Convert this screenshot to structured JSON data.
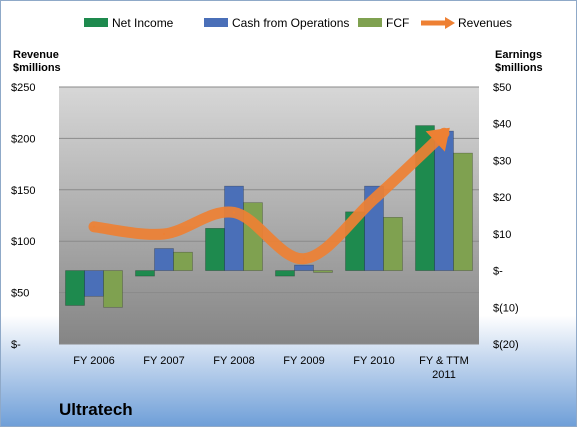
{
  "company_name": "Ultratech",
  "chart_data": {
    "type": "bar",
    "categories": [
      "FY 2006",
      "FY 2007",
      "FY 2008",
      "FY 2009",
      "FY 2010",
      "FY & TTM 2011"
    ],
    "series": [
      {
        "name": "Net Income",
        "values": [
          -9.5,
          -1.5,
          11.5,
          -1.5,
          16,
          39.5
        ],
        "axis": "right",
        "kind": "bar",
        "color": "#1e8a4e"
      },
      {
        "name": "Cash from Operations",
        "values": [
          -7,
          6,
          23,
          1.5,
          23,
          38
        ],
        "axis": "right",
        "kind": "bar",
        "color": "#4a6fb8"
      },
      {
        "name": "FCF",
        "values": [
          -10,
          5,
          18.5,
          -0.5,
          14.5,
          32
        ],
        "axis": "right",
        "kind": "bar",
        "color": "#7fa150"
      },
      {
        "name": "Revenues",
        "values": [
          114,
          107,
          128,
          83,
          141,
          205
        ],
        "axis": "left",
        "kind": "line",
        "color": "#ee8033"
      }
    ],
    "left_axis": {
      "title": [
        "Revenue",
        "$millions"
      ],
      "range": [
        0,
        250
      ],
      "ticks": [
        {
          "value": 0,
          "label": "$-"
        },
        {
          "value": 50,
          "label": "$50"
        },
        {
          "value": 100,
          "label": "$100"
        },
        {
          "value": 150,
          "label": "$150"
        },
        {
          "value": 200,
          "label": "$200"
        },
        {
          "value": 250,
          "label": "$250"
        }
      ]
    },
    "right_axis": {
      "title": [
        "Earnings",
        "$millions"
      ],
      "range": [
        -20,
        50
      ],
      "ticks": [
        {
          "value": -20,
          "label": "$(20)"
        },
        {
          "value": -10,
          "label": "$(10)"
        },
        {
          "value": 0,
          "label": "$-"
        },
        {
          "value": 10,
          "label": "$10"
        },
        {
          "value": 20,
          "label": "$20"
        },
        {
          "value": 30,
          "label": "$30"
        },
        {
          "value": 40,
          "label": "$40"
        },
        {
          "value": 50,
          "label": "$50"
        }
      ]
    },
    "category_labels": [
      [
        "FY 2006"
      ],
      [
        "FY 2007"
      ],
      [
        "FY 2008"
      ],
      [
        "FY 2009"
      ],
      [
        "FY 2010"
      ],
      [
        "FY & TTM",
        "2011"
      ]
    ],
    "grid": true,
    "legend_position": "top"
  }
}
